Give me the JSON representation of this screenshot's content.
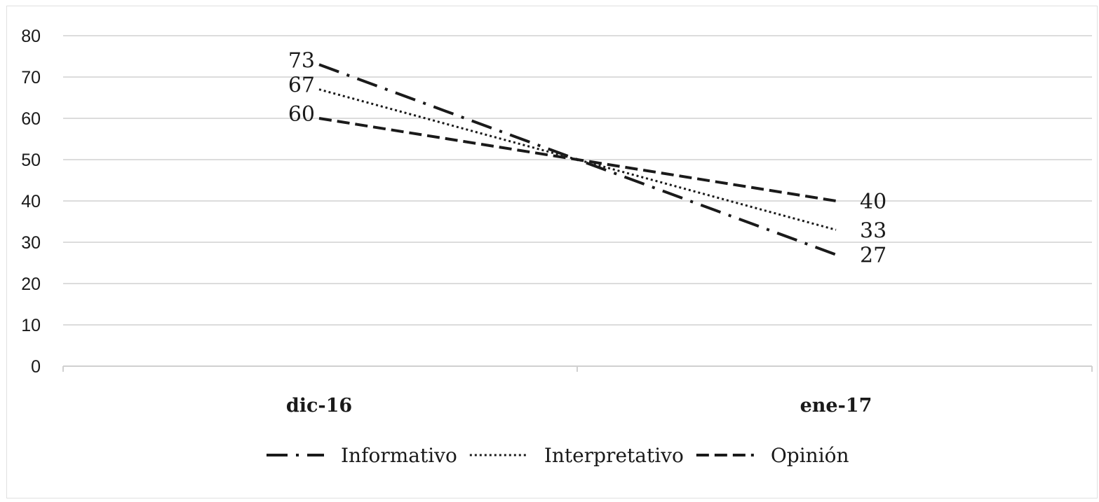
{
  "chart_data": {
    "type": "line",
    "categories": [
      "dic-16",
      "ene-17"
    ],
    "ylim": [
      0,
      80
    ],
    "yticks": [
      0,
      10,
      20,
      30,
      40,
      50,
      60,
      70,
      80
    ],
    "grid": true,
    "legend_position": "bottom",
    "series": [
      {
        "name": "Informativo",
        "values": [
          73,
          27
        ],
        "labels": [
          "73",
          "27"
        ],
        "dash": "dash-dot",
        "color": "#1a1a1a"
      },
      {
        "name": "Interpretativo",
        "values": [
          67,
          33
        ],
        "labels": [
          "67",
          "33"
        ],
        "dash": "dotted",
        "color": "#1a1a1a"
      },
      {
        "name": "Opinión",
        "values": [
          60,
          40
        ],
        "labels": [
          "60",
          "40"
        ],
        "dash": "dashed",
        "color": "#1a1a1a"
      }
    ]
  },
  "colors": {
    "gridline": "#dcdcdc",
    "axis": "#d0d0d0",
    "text": "#1a1a1a"
  }
}
